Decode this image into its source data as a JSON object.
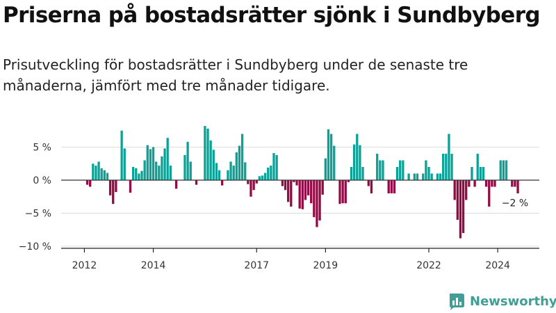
{
  "title": "Priserna på bostadsrätter sjönk i Sundbyberg",
  "subtitle": "Prisutveckling för bostadsrätter i Sundbyberg under de senaste tre månaderna, jämfört med tre månader tidigare.",
  "brand": "Newsworthy",
  "colors": {
    "positive": "#0aa297",
    "negative": "#930a45",
    "grid": "#dddddd",
    "zero_line": "#333333"
  },
  "chart_data": {
    "type": "bar",
    "unit": "%",
    "title": "Priserna på bostadsrätter sjönk i Sundbyberg",
    "xlabel": "",
    "ylabel": "",
    "ylim": [
      -10,
      10
    ],
    "yticks": [
      {
        "value": 5,
        "label": "5 %"
      },
      {
        "value": 0,
        "label": "0 %"
      },
      {
        "value": -5,
        "label": "−5 %"
      },
      {
        "value": -10,
        "label": "−10 %"
      }
    ],
    "xticks": [
      {
        "index": 6,
        "label": "2012"
      },
      {
        "index": 30,
        "label": "2014"
      },
      {
        "index": 66,
        "label": "2017"
      },
      {
        "index": 90,
        "label": "2019"
      },
      {
        "index": 126,
        "label": "2022"
      },
      {
        "index": 150,
        "label": "2024"
      }
    ],
    "annotation": {
      "index": 156,
      "label": "−2 %"
    },
    "months_start": "2011-07",
    "values": [
      null,
      null,
      null,
      null,
      null,
      null,
      null,
      -0.7,
      -1.0,
      2.5,
      2.2,
      2.8,
      1.8,
      1.5,
      1.1,
      -2.3,
      -3.6,
      -1.8,
      null,
      7.5,
      4.8,
      0,
      -1.9,
      2.0,
      1.8,
      1.0,
      1.4,
      3.0,
      5.3,
      4.7,
      5.0,
      2.8,
      2.2,
      3.6,
      4.8,
      6.4,
      2.2,
      0,
      -1.3,
      0,
      0,
      3.8,
      5.8,
      2.8,
      0,
      -0.7,
      0,
      0,
      8.2,
      7.8,
      6.0,
      4.6,
      2.6,
      1.5,
      -0.8,
      0,
      1.5,
      2.8,
      2.2,
      4.2,
      5.2,
      7.0,
      2.7,
      -0.6,
      -2.5,
      -1.5,
      -0.5,
      0.6,
      0.7,
      1.1,
      1.9,
      2.2,
      4.1,
      3.8,
      0,
      -0.9,
      -1.5,
      -3.3,
      -4.0,
      -0.3,
      -0.8,
      -4.3,
      -4.4,
      -3.0,
      -2.3,
      -3.5,
      -5.6,
      -7.1,
      -6.1,
      -2.2,
      3.3,
      7.7,
      7.0,
      5.2,
      0,
      -3.6,
      -3.5,
      -3.5,
      -0.3,
      2.0,
      5.4,
      7.0,
      5.3,
      2.0,
      0,
      -0.9,
      -2.0,
      0,
      4.0,
      3.0,
      3.0,
      0,
      -2.0,
      -2.0,
      -2.0,
      2.0,
      3.0,
      3.0,
      0,
      1.0,
      0,
      1.0,
      1.0,
      0,
      1.0,
      3.0,
      2.0,
      1.0,
      0,
      1.0,
      1.0,
      4.0,
      4.0,
      7.0,
      4.0,
      -3.0,
      -6.0,
      -8.8,
      -8.0,
      -3.0,
      -1.0,
      2.0,
      -1.0,
      4.0,
      2.0,
      2.0,
      -1.0,
      -4.0,
      -1.0,
      -1.0,
      0,
      3.0,
      3.0,
      3.0,
      0,
      -1.0,
      -1.0,
      -2.0
    ]
  }
}
